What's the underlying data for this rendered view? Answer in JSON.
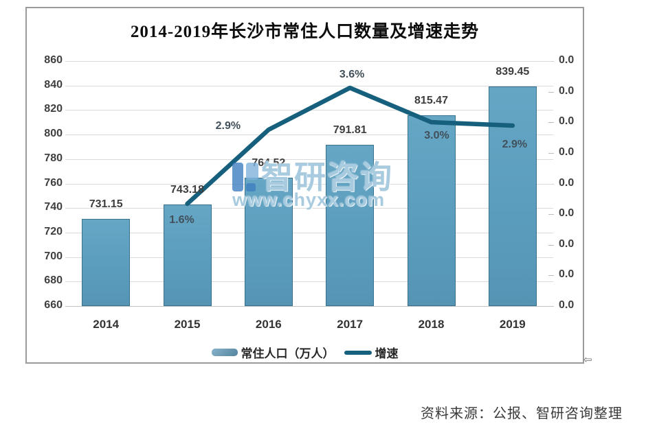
{
  "title": "2014-2019年长沙市常住人口数量及增速走势",
  "watermark": {
    "brand": "智研咨询",
    "url": "www.chyxx.com"
  },
  "source_note": "资料来源：公报、智研咨询整理",
  "legend": [
    {
      "label": "常住人口（万人）",
      "type": "bar"
    },
    {
      "label": "增速",
      "type": "line"
    }
  ],
  "colors": {
    "bar_fill": "#5B9DBD",
    "bar_border": "#38718F",
    "line": "#17607D",
    "grid": "#DADADA",
    "axis_text": "#3F3F3F",
    "watermark": "#9DC4DB"
  },
  "chart_data": {
    "type": "bar",
    "title": "2014-2019年长沙市常住人口数量及增速走势",
    "categories": [
      "2014",
      "2015",
      "2016",
      "2017",
      "2018",
      "2019"
    ],
    "series": [
      {
        "name": "常住人口（万人）",
        "type": "bar",
        "values": [
          731.15,
          743.18,
          764.52,
          791.81,
          815.47,
          839.45
        ],
        "labels": [
          "731.15",
          "743.18",
          "764.52",
          "791.81",
          "815.47",
          "839.45"
        ]
      },
      {
        "name": "增速",
        "type": "line",
        "unit": "%",
        "values": [
          null,
          1.6,
          2.9,
          3.6,
          3.0,
          2.9
        ],
        "labels": [
          "1.6%",
          "2.9%",
          "3.6%",
          "3.0%",
          "2.9%"
        ]
      }
    ],
    "left_axis": {
      "min": 660,
      "max": 860,
      "ticks": [
        "860",
        "840",
        "820",
        "800",
        "780",
        "760",
        "740",
        "720",
        "700",
        "680",
        "660"
      ]
    },
    "right_axis": {
      "ticks": [
        "0.0",
        "0.0",
        "0.0",
        "0.0",
        "0.0",
        "0.0",
        "0.0",
        "0.0",
        "0.0"
      ]
    },
    "grid": true,
    "legend_position": "bottom"
  }
}
